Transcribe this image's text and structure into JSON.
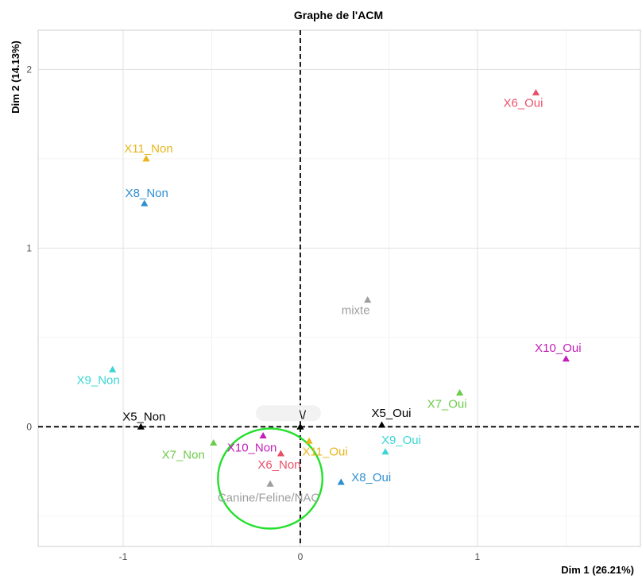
{
  "chart_data": {
    "type": "scatter",
    "title": "Graphe de l'ACM",
    "xlabel": "Dim 1 (26.21%)",
    "ylabel": "Dim 2 (14.13%)",
    "xlim": [
      -1.48,
      1.92
    ],
    "ylim": [
      -0.67,
      2.22
    ],
    "x_ticks": [
      -1,
      0,
      1
    ],
    "y_ticks": [
      0,
      1,
      2
    ],
    "x_tick_labels": [
      "-1",
      "0",
      "1"
    ],
    "y_tick_labels": [
      "0",
      "1",
      "2"
    ],
    "grid": true,
    "reference_lines": {
      "x": 0,
      "y": 0,
      "style": "dashed"
    },
    "points": [
      {
        "label": "X6_Oui",
        "x": 1.33,
        "y": 1.87,
        "color": "#E8506A"
      },
      {
        "label": "X11_Non",
        "x": -0.87,
        "y": 1.5,
        "color": "#E8B51A"
      },
      {
        "label": "X8_Non",
        "x": -0.88,
        "y": 1.25,
        "color": "#2E8FD0"
      },
      {
        "label": "mixte",
        "x": 0.38,
        "y": 0.71,
        "color": "#9E9E9E"
      },
      {
        "label": "X10_Oui",
        "x": 1.5,
        "y": 0.38,
        "color": "#C21FB8"
      },
      {
        "label": "X9_Non",
        "x": -1.06,
        "y": 0.32,
        "color": "#3AD6D6"
      },
      {
        "label": "X7_Oui",
        "x": 0.9,
        "y": 0.19,
        "color": "#6DCB4A"
      },
      {
        "label": "X5_Non",
        "x": -0.9,
        "y": 0.0,
        "color": "#000000"
      },
      {
        "label": "X5_Oui",
        "x": 0.46,
        "y": 0.01,
        "color": "#000000"
      },
      {
        "label": "X9_Oui",
        "x": 0.48,
        "y": -0.14,
        "color": "#3AD6D6"
      },
      {
        "label": "X11_Oui",
        "x": 0.05,
        "y": -0.08,
        "color": "#E8B51A"
      },
      {
        "label": "X8_Oui",
        "x": 0.23,
        "y": -0.31,
        "color": "#2E8FD0"
      },
      {
        "label": "X7_Non",
        "x": -0.49,
        "y": -0.09,
        "color": "#6DCB4A"
      },
      {
        "label": "X10_Non",
        "x": -0.21,
        "y": -0.05,
        "color": "#C21FB8"
      },
      {
        "label": "X6_Non",
        "x": -0.11,
        "y": -0.15,
        "color": "#E8506A"
      },
      {
        "label": "Canine/Feline/NAC",
        "x": -0.17,
        "y": -0.32,
        "color": "#9E9E9E"
      },
      {
        "label": "",
        "x": 0.0,
        "y": 0.0,
        "color": "#000000"
      }
    ],
    "highlight_circle": {
      "x": -0.17,
      "y": -0.29,
      "rx": 0.295,
      "ry": 0.28,
      "color": "#22E02B"
    }
  },
  "partial_label": "\\/"
}
